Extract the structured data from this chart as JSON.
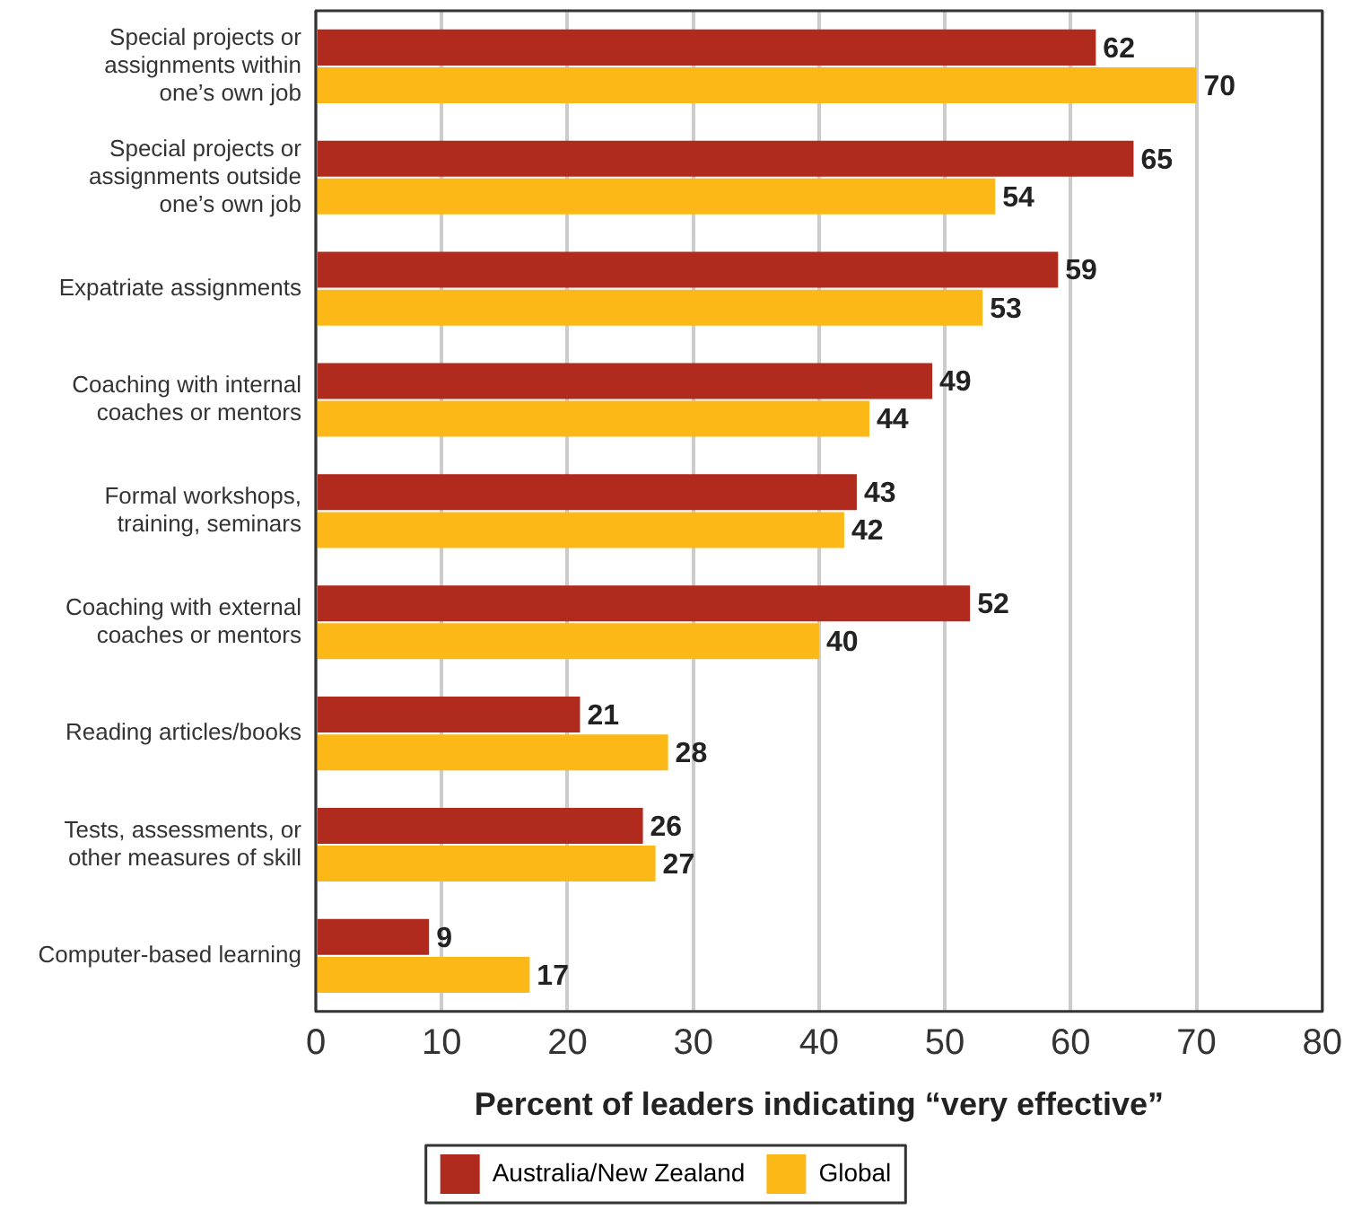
{
  "chart_data": {
    "type": "bar",
    "orientation": "horizontal",
    "categories": [
      "Special projects or assignments within one’s own job",
      "Special projects or assignments outside one’s own job",
      "Expatriate assignments",
      "Coaching with internal coaches or mentors",
      "Formal workshops, training, seminars",
      "Coaching with external coaches or mentors",
      "Reading articles/books",
      "Tests, assessments, or other measures of skill",
      "Computer-based learning"
    ],
    "series": [
      {
        "name": "Australia/New Zealand",
        "color": "#b02a1e",
        "values": [
          62,
          65,
          59,
          49,
          43,
          52,
          21,
          26,
          9
        ]
      },
      {
        "name": "Global",
        "color": "#fbb817",
        "values": [
          70,
          54,
          53,
          44,
          42,
          40,
          28,
          27,
          17
        ]
      }
    ],
    "xlabel": "Percent of leaders indicating “very effective”",
    "xlim": [
      0,
      80
    ],
    "xticks": [
      0,
      10,
      20,
      30,
      40,
      50,
      60,
      70,
      80
    ],
    "grid": "x",
    "legend": "bottom",
    "data_labels": true
  }
}
